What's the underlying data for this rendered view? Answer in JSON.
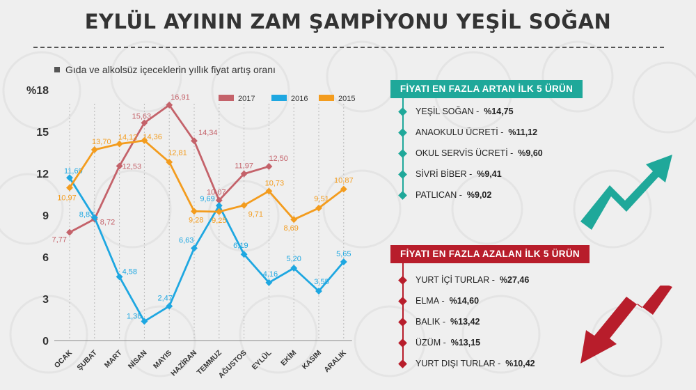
{
  "title": "EYLÜL AYININ ZAM ŞAMPİYONU YEŞİL SOĞAN",
  "subtitle": "Gıda ve alkolsüz içeceklerin yıllık fiyat artış oranı",
  "colors": {
    "s2017": "#c4626a",
    "s2016": "#1ea7e1",
    "s2015": "#f39c1e",
    "teal": "#1fa89a",
    "red": "#b81d2b"
  },
  "chart_data": {
    "type": "line",
    "ylabel": "%18",
    "ylim": [
      0,
      18
    ],
    "yticks": [
      "0",
      "3",
      "6",
      "9",
      "12",
      "15",
      "%18"
    ],
    "categories": [
      "OCAK",
      "ŞUBAT",
      "MART",
      "NİSAN",
      "MAYIS",
      "HAZİRAN",
      "TEMMUZ",
      "AĞUSTOS",
      "EYLÜL",
      "EKİM",
      "KASIM",
      "ARALIK"
    ],
    "legend_position": "top-right",
    "series": [
      {
        "name": "2017",
        "color": "#c4626a",
        "values": [
          7.77,
          8.72,
          12.53,
          15.63,
          16.91,
          14.34,
          10.07,
          11.97,
          12.5,
          null,
          null,
          null
        ],
        "labels": [
          "7,77",
          "8,72",
          "12,53",
          "15,63",
          "16,91",
          "14,34",
          "10,07",
          "11,97",
          "12,50",
          "",
          "",
          ""
        ]
      },
      {
        "name": "2016",
        "color": "#1ea7e1",
        "values": [
          11.69,
          8.83,
          4.58,
          1.38,
          2.47,
          6.63,
          9.69,
          6.19,
          4.16,
          5.2,
          3.55,
          5.65
        ],
        "labels": [
          "11,69",
          "8,83",
          "4,58",
          "1,38",
          "2,47",
          "6,63",
          "9,69",
          "6,19",
          "4,16",
          "5,20",
          "3,55",
          "5,65"
        ]
      },
      {
        "name": "2015",
        "color": "#f39c1e",
        "values": [
          10.97,
          13.7,
          14.12,
          14.36,
          12.81,
          9.28,
          9.25,
          9.71,
          10.73,
          8.69,
          9.51,
          10.87
        ],
        "labels": [
          "10,97",
          "13,70",
          "14,12",
          "14,36",
          "12,81",
          "9,28",
          "9,25",
          "9,71",
          "10,73",
          "8,69",
          "9,51",
          "10,87"
        ]
      }
    ]
  },
  "panel_up": {
    "header": "FİYATI EN FAZLA ARTAN İLK 5 ÜRÜN",
    "items": [
      {
        "name": "YEŞİL SOĞAN",
        "value": "%14,75"
      },
      {
        "name": "ANAOKULU ÜCRETİ",
        "value": "%11,12"
      },
      {
        "name": "OKUL SERVİS ÜCRETİ",
        "value": "%9,60"
      },
      {
        "name": "SİVRİ BİBER",
        "value": "%9,41"
      },
      {
        "name": "PATLICAN",
        "value": "%9,02"
      }
    ]
  },
  "panel_down": {
    "header": "FİYATI EN FAZLA AZALAN İLK 5 ÜRÜN",
    "items": [
      {
        "name": "YURT İÇİ TURLAR",
        "value": "%27,46"
      },
      {
        "name": "ELMA",
        "value": "%14,60"
      },
      {
        "name": "BALIK",
        "value": "%13,42"
      },
      {
        "name": "ÜZÜM",
        "value": "%13,15"
      },
      {
        "name": "YURT DIŞI TURLAR",
        "value": "%10,42"
      }
    ]
  }
}
